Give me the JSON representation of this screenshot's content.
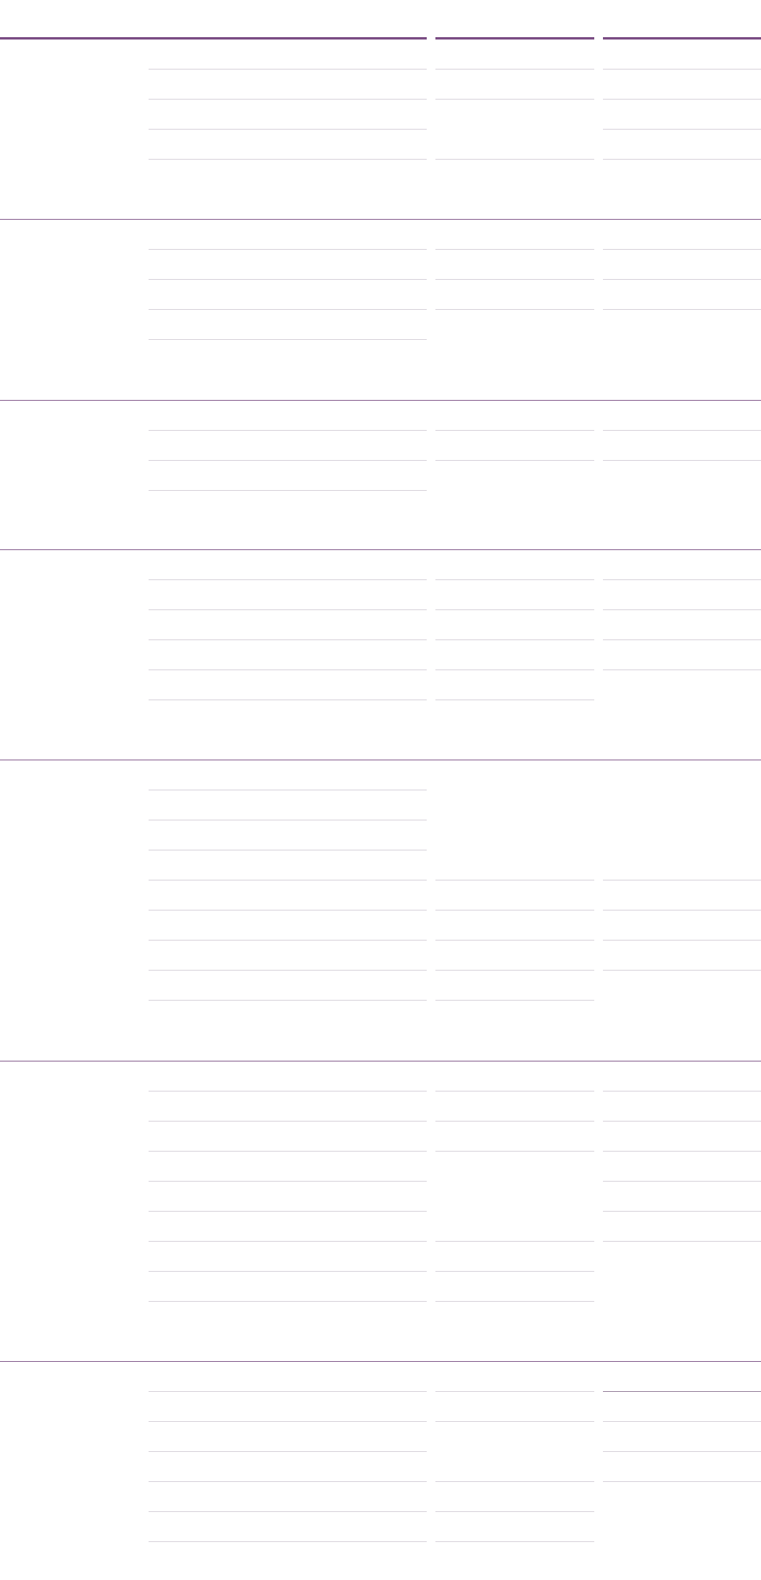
{
  "colors": {
    "accent": "#7b4d84",
    "section_rule": "#8a6492",
    "row_rule": "#d9d4dc",
    "row_rule_strong": "#9a86a0",
    "background": "#ffffff"
  },
  "table": {
    "columns": [
      "",
      "",
      "",
      ""
    ],
    "sections": [
      {
        "rows": [
          {
            "cells": [
              "",
              "",
              ""
            ]
          },
          {
            "cells": [
              "",
              "",
              ""
            ]
          },
          {
            "cells": [
              "",
              ""
            ]
          },
          {
            "cells": [
              "",
              "",
              ""
            ]
          }
        ]
      },
      {
        "rows": [
          {
            "cells": [
              "",
              "",
              ""
            ]
          },
          {
            "cells": [
              "",
              "",
              ""
            ]
          },
          {
            "cells": [
              "",
              "",
              ""
            ]
          },
          {
            "cells": [
              ""
            ]
          }
        ]
      },
      {
        "rows": [
          {
            "cells": [
              "",
              "",
              ""
            ]
          },
          {
            "cells": [
              "",
              "",
              ""
            ]
          },
          {
            "cells": [
              ""
            ]
          }
        ]
      },
      {
        "rows": [
          {
            "cells": [
              "",
              "",
              ""
            ]
          },
          {
            "cells": [
              "",
              "",
              ""
            ]
          },
          {
            "cells": [
              "",
              "",
              ""
            ]
          },
          {
            "cells": [
              "",
              "",
              ""
            ]
          },
          {
            "cells": [
              "",
              ""
            ]
          }
        ]
      },
      {
        "rows": [
          {
            "cells": [
              ""
            ]
          },
          {
            "cells": [
              ""
            ]
          },
          {
            "cells": [
              ""
            ]
          },
          {
            "cells": [
              "",
              "",
              ""
            ]
          },
          {
            "cells": [
              "",
              "",
              ""
            ]
          },
          {
            "cells": [
              "",
              "",
              ""
            ]
          },
          {
            "cells": [
              "",
              "",
              ""
            ]
          },
          {
            "cells": [
              "",
              ""
            ]
          }
        ]
      },
      {
        "rows": [
          {
            "cells": [
              "",
              "",
              ""
            ]
          },
          {
            "cells": [
              "",
              "",
              ""
            ]
          },
          {
            "cells": [
              "",
              "",
              ""
            ]
          },
          {
            "cells": [
              "",
              ""
            ]
          },
          {
            "cells": [
              "",
              ""
            ]
          },
          {
            "cells": [
              "",
              "",
              ""
            ]
          },
          {
            "cells": [
              "",
              ""
            ]
          },
          {
            "cells": [
              "",
              ""
            ]
          }
        ]
      },
      {
        "rows": [
          {
            "cells": [
              "",
              "",
              ""
            ]
          },
          {
            "cells": [
              "",
              "",
              ""
            ]
          },
          {
            "cells": [
              "",
              ""
            ]
          },
          {
            "cells": [
              "",
              "",
              ""
            ]
          },
          {
            "cells": [
              "",
              ""
            ]
          },
          {
            "cells": [
              "",
              ""
            ]
          }
        ]
      }
    ]
  }
}
